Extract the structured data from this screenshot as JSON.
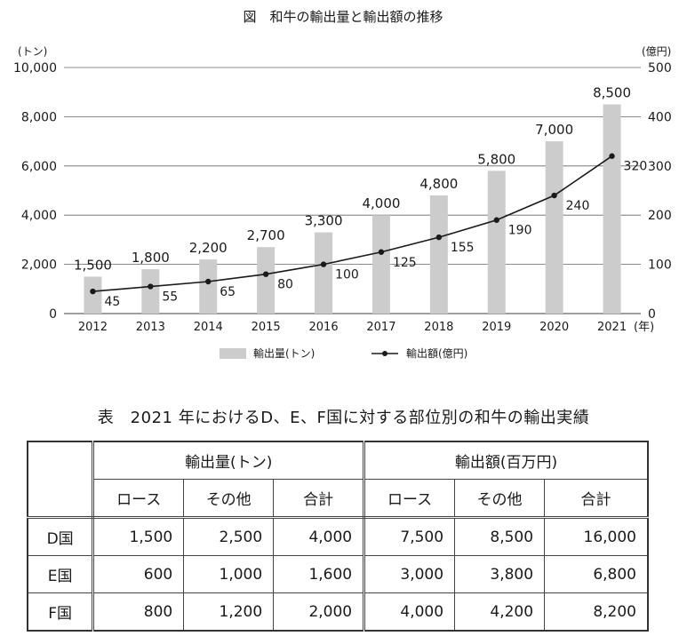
{
  "chart_data": {
    "type": "bar+line",
    "title": "図　和牛の輸出量と輸出額の推移",
    "categories": [
      "2012",
      "2013",
      "2014",
      "2015",
      "2016",
      "2017",
      "2018",
      "2019",
      "2020",
      "2021"
    ],
    "series": [
      {
        "name": "輸出量(トン)",
        "type": "bar",
        "axis": "left",
        "values": [
          1500,
          1800,
          2200,
          2700,
          3300,
          4000,
          4800,
          5800,
          7000,
          8500
        ],
        "labels": [
          "1,500",
          "1,800",
          "2,200",
          "2,700",
          "3,300",
          "4,000",
          "4,800",
          "5,800",
          "7,000",
          "8,500"
        ]
      },
      {
        "name": "輸出額(億円)",
        "type": "line",
        "axis": "right",
        "values": [
          45,
          55,
          65,
          80,
          100,
          125,
          155,
          190,
          240,
          320
        ]
      }
    ],
    "y_left": {
      "unit": "(トン)",
      "ylim": [
        0,
        10000
      ],
      "ticks": [
        0,
        2000,
        4000,
        6000,
        8000,
        10000
      ],
      "tick_labels": [
        "0",
        "2,000",
        "4,000",
        "6,000",
        "8,000",
        "10,000"
      ]
    },
    "y_right": {
      "unit": "(億円)",
      "ylim": [
        0,
        500
      ],
      "ticks": [
        0,
        100,
        200,
        300,
        400,
        500
      ],
      "tick_labels": [
        "0",
        "100",
        "200",
        "300",
        "400",
        "500"
      ]
    },
    "x_unit": "(年)",
    "grid": true,
    "legend": "bottom",
    "colors": {
      "bar": "#cccccc",
      "line": "#1a1a1a",
      "grid": "#666666"
    }
  },
  "table": {
    "title": "表　2021 年におけるD、E、F国に対する部位別の和牛の輸出実績",
    "groups": [
      "輸出量(トン)",
      "輸出額(百万円)"
    ],
    "subheaders": [
      "ロース",
      "その他",
      "合計",
      "ロース",
      "その他",
      "合計"
    ],
    "rows": [
      {
        "name": "D国",
        "cells": [
          "1,500",
          "2,500",
          "4,000",
          "7,500",
          "8,500",
          "16,000"
        ]
      },
      {
        "name": "E国",
        "cells": [
          "600",
          "1,000",
          "1,600",
          "3,000",
          "3,800",
          "6,800"
        ]
      },
      {
        "name": "F国",
        "cells": [
          "800",
          "1,200",
          "2,000",
          "4,000",
          "4,200",
          "8,200"
        ]
      }
    ]
  }
}
